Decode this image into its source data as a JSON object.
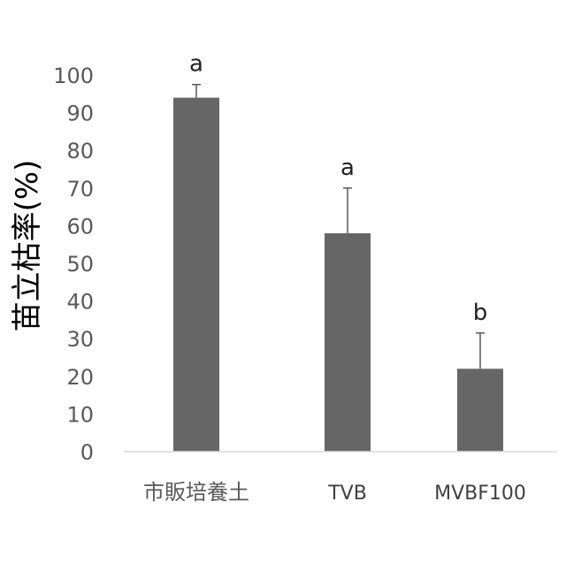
{
  "chart_data": {
    "type": "bar",
    "title": "",
    "xlabel": "",
    "ylabel": "苗立枯率(%)",
    "ylim": [
      0,
      100
    ],
    "yticks": [
      0,
      10,
      20,
      30,
      40,
      50,
      60,
      70,
      80,
      90,
      100
    ],
    "grid": false,
    "categories": [
      "市販培養土",
      "TVB",
      "MVBF100"
    ],
    "values": [
      94,
      58,
      22
    ],
    "error_upper": [
      3.5,
      12,
      9.5
    ],
    "significance_letters": [
      "a",
      "a",
      "b"
    ],
    "bar_color": "#666666",
    "axis_color": "#d9d9d9",
    "error_bar_color": "#595959"
  }
}
